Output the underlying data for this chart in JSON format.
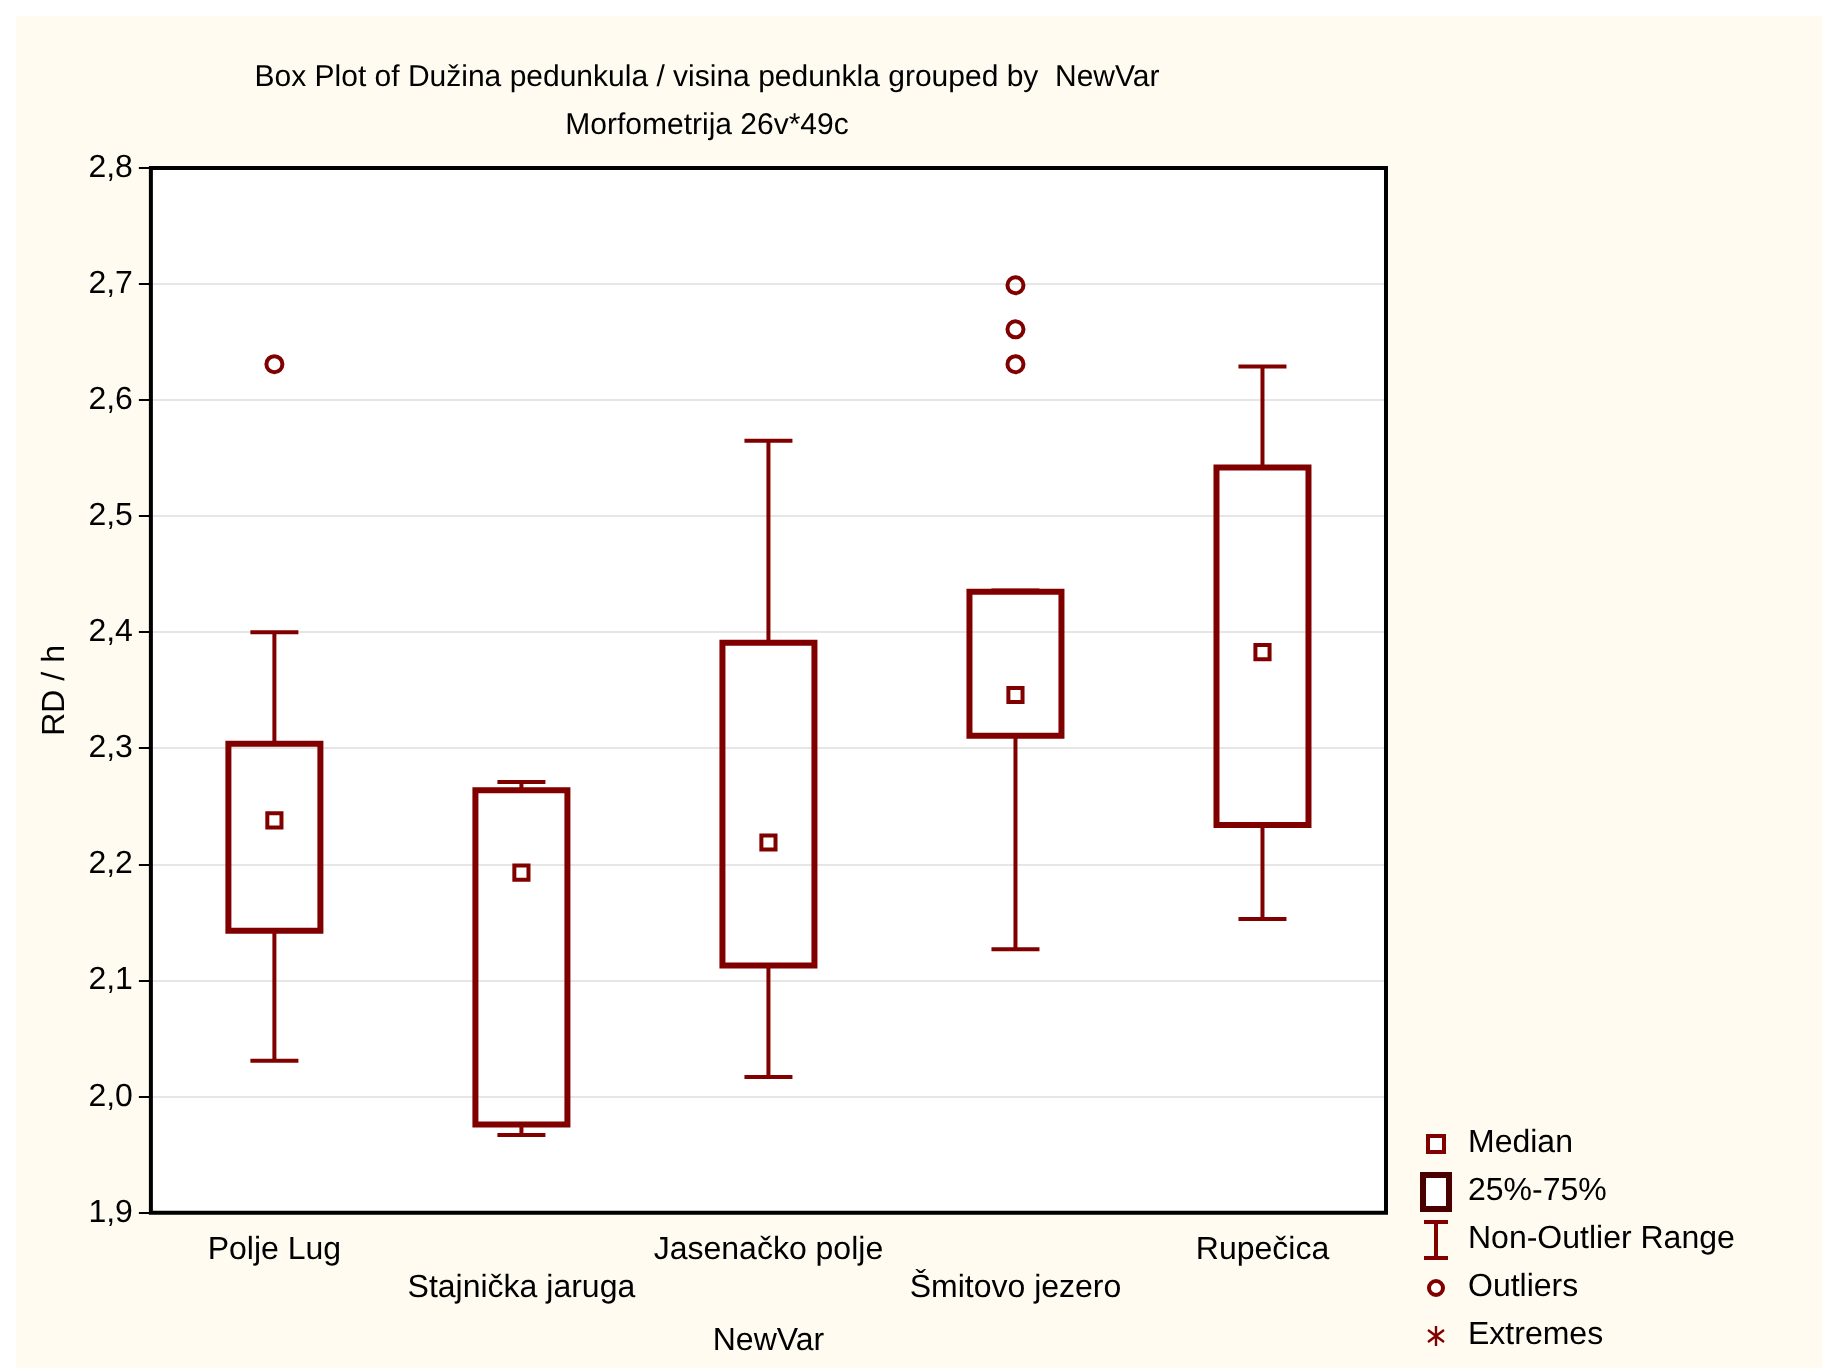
{
  "chart_data": {
    "type": "box",
    "title": "Box Plot of Dužina pedunkula / visina pedunkla grouped by  NewVar",
    "subtitle": "Morfometrija 26v*49c",
    "xlabel": "NewVar",
    "ylabel": "RD / h",
    "categories": [
      "Polje Lug",
      "Stajnička jaruga",
      "Jasenačko polje",
      "Šmitovo jezero",
      "Rupečica"
    ],
    "boxes": [
      {
        "low": 2.031,
        "q1": 2.143,
        "median": 2.238,
        "q3": 2.304,
        "high": 2.4,
        "outliers": [
          2.631
        ]
      },
      {
        "low": 1.967,
        "q1": 1.976,
        "median": 2.193,
        "q3": 2.264,
        "high": 2.271
      },
      {
        "low": 2.017,
        "q1": 2.113,
        "median": 2.219,
        "q3": 2.391,
        "high": 2.565
      },
      {
        "low": 2.127,
        "q1": 2.311,
        "median": 2.346,
        "q3": 2.435,
        "high": 2.436,
        "outliers": [
          2.631,
          2.661,
          2.699
        ]
      },
      {
        "low": 2.153,
        "q1": 2.234,
        "median": 2.383,
        "q3": 2.542,
        "high": 2.629
      }
    ],
    "color": "#800000",
    "ylim": [
      1.9,
      2.8
    ],
    "yticks": [
      {
        "value": 1.9,
        "label": "1,9"
      },
      {
        "value": 2.0,
        "label": "2,0"
      },
      {
        "value": 2.1,
        "label": "2,1"
      },
      {
        "value": 2.2,
        "label": "2,2"
      },
      {
        "value": 2.3,
        "label": "2,3"
      },
      {
        "value": 2.4,
        "label": "2,4"
      },
      {
        "value": 2.5,
        "label": "2,5"
      },
      {
        "value": 2.6,
        "label": "2,6"
      },
      {
        "value": 2.7,
        "label": "2,7"
      },
      {
        "value": 2.8,
        "label": "2,8"
      }
    ],
    "grid": "y",
    "annotations": [
      "Median",
      "25%-75%",
      "Non-Outlier Range",
      "Outliers",
      "Extremes"
    ]
  }
}
